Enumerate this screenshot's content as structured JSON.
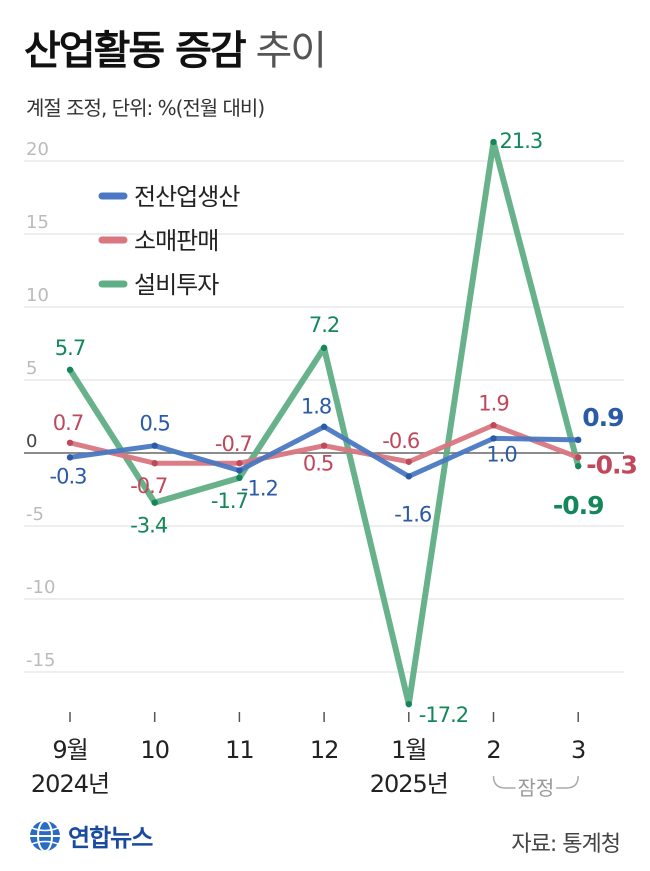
{
  "header": {
    "title_bold": "산업활동 증감",
    "title_light": "추이",
    "subtitle": "계절 조정, 단위: %(전월 대비)"
  },
  "chart_data": {
    "type": "line",
    "title": "산업활동 증감 추이",
    "unit": "%(전월 대비)",
    "categories": [
      "9월",
      "10",
      "11",
      "12",
      "1월",
      "2",
      "3"
    ],
    "year_labels": [
      "2024년",
      "2025년"
    ],
    "ylim": [
      -18,
      22
    ],
    "yticks": [
      20,
      15,
      10,
      5,
      0,
      -5,
      -10,
      -15
    ],
    "ytick_labels": [
      "20",
      "15",
      "10",
      "5",
      "0",
      "-5",
      "-10",
      "-15"
    ],
    "grid": true,
    "legend_position": "top-left",
    "preliminary_label": "잠정",
    "series": [
      {
        "name": "전산업생산",
        "color": "#4a78c2",
        "values": [
          -0.3,
          0.5,
          -1.2,
          1.8,
          -1.6,
          1.0,
          0.9
        ],
        "labels": [
          "-0.3",
          "0.5",
          "-1.2",
          "1.8",
          "-1.6",
          "1.0",
          "0.9"
        ]
      },
      {
        "name": "소매판매",
        "color": "#d97680",
        "values": [
          0.7,
          -0.7,
          -0.7,
          0.5,
          -0.6,
          1.9,
          -0.3
        ],
        "labels": [
          "0.7",
          "-0.7",
          "-0.7",
          "0.5",
          "-0.6",
          "1.9",
          "-0.3"
        ]
      },
      {
        "name": "설비투자",
        "color": "#5fae85",
        "values": [
          5.7,
          -3.4,
          -1.7,
          7.2,
          -17.2,
          21.3,
          -0.9
        ],
        "labels": [
          "5.7",
          "-3.4",
          "-1.7",
          "7.2",
          "-17.2",
          "21.3",
          "-0.9"
        ]
      }
    ],
    "label_colors": [
      "#2a5aa8",
      "#c0485a",
      "#14875a"
    ]
  },
  "footer": {
    "logo_text": "연합뉴스",
    "source": "자료: 통계청"
  }
}
